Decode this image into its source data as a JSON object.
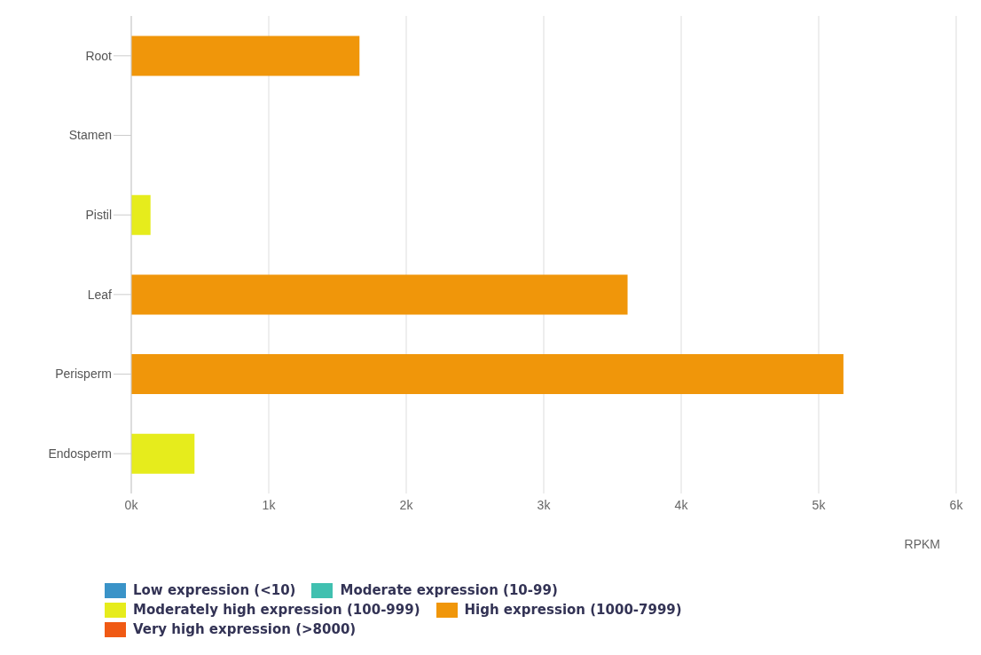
{
  "chart_data": {
    "type": "bar",
    "orientation": "horizontal",
    "stacked": true,
    "categories": [
      "Root",
      "Stamen",
      "Pistil",
      "Leaf",
      "Perisperm",
      "Endosperm"
    ],
    "series": [
      {
        "name": "Low expression (<10)",
        "color": "#3a93c8",
        "values": [
          null,
          null,
          null,
          null,
          null,
          null
        ]
      },
      {
        "name": "Moderate expression (10-99)",
        "color": "#40c0b0",
        "values": [
          null,
          null,
          null,
          null,
          null,
          null
        ]
      },
      {
        "name": "Moderately high expression (100-999)",
        "color": "#e6ec1c",
        "values": [
          null,
          null,
          140,
          null,
          null,
          460
        ]
      },
      {
        "name": "High expression (1000-7999)",
        "color": "#f0960a",
        "values": [
          1660,
          null,
          null,
          3610,
          5180,
          null
        ]
      },
      {
        "name": "Very high expression (>8000)",
        "color": "#f05a14",
        "values": [
          null,
          null,
          null,
          null,
          null,
          null
        ]
      }
    ],
    "xlabel": "RPKM",
    "xlim": [
      0,
      6000
    ],
    "xticks": [
      {
        "value": 0,
        "label": "0k"
      },
      {
        "value": 1000,
        "label": "1k"
      },
      {
        "value": 2000,
        "label": "2k"
      },
      {
        "value": 3000,
        "label": "3k"
      },
      {
        "value": 4000,
        "label": "4k"
      },
      {
        "value": 5000,
        "label": "5k"
      },
      {
        "value": 6000,
        "label": "6k"
      }
    ],
    "grid": "x",
    "legend": "bottom"
  }
}
